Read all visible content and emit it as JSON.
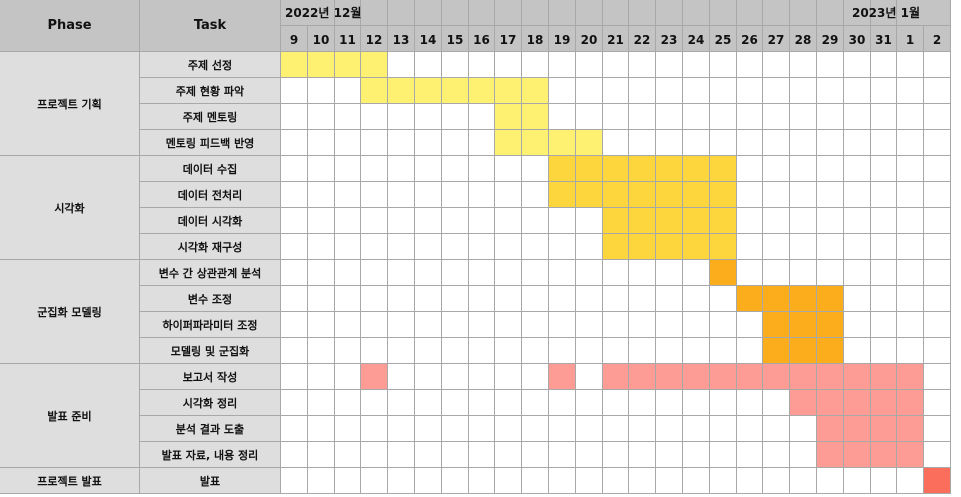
{
  "header": {
    "phase": "Phase",
    "task": "Task"
  },
  "months": [
    {
      "label": "2022년 12월",
      "start_day_index": 0,
      "align": "left"
    },
    {
      "label": "2023년 1월",
      "start_day_index": 23,
      "align": "right"
    }
  ],
  "days": [
    "9",
    "10",
    "11",
    "12",
    "13",
    "14",
    "15",
    "16",
    "17",
    "18",
    "19",
    "20",
    "21",
    "22",
    "23",
    "24",
    "25",
    "26",
    "27",
    "28",
    "29",
    "30",
    "31",
    "1",
    "2"
  ],
  "colors": {
    "yellow": "#fef070",
    "gold": "#fcd63c",
    "orange": "#fbad1c",
    "salmon": "#fc9c94",
    "red": "#fc6e5c"
  },
  "phases": [
    {
      "name": "프로젝트 기획",
      "tasks": [
        {
          "name": "주제 선정",
          "cells": [
            [
              0,
              3,
              "yellow"
            ]
          ]
        },
        {
          "name": "주제 현황 파악",
          "cells": [
            [
              3,
              9,
              "yellow"
            ]
          ]
        },
        {
          "name": "주제 멘토링",
          "cells": [
            [
              8,
              9,
              "yellow"
            ]
          ]
        },
        {
          "name": "멘토링 피드백 반영",
          "cells": [
            [
              8,
              11,
              "yellow"
            ]
          ]
        }
      ]
    },
    {
      "name": "시각화",
      "tasks": [
        {
          "name": "데이터 수집",
          "cells": [
            [
              10,
              16,
              "gold"
            ]
          ]
        },
        {
          "name": "데이터 전처리",
          "cells": [
            [
              10,
              16,
              "gold"
            ]
          ]
        },
        {
          "name": "데이터 시각화",
          "cells": [
            [
              12,
              16,
              "gold"
            ]
          ]
        },
        {
          "name": "시각화 재구성",
          "cells": [
            [
              12,
              16,
              "gold"
            ]
          ]
        }
      ]
    },
    {
      "name": "군집화 모델링",
      "tasks": [
        {
          "name": "변수 간 상관관계 분석",
          "cells": [
            [
              16,
              16,
              "orange"
            ]
          ]
        },
        {
          "name": "변수 조정",
          "cells": [
            [
              17,
              20,
              "orange"
            ]
          ]
        },
        {
          "name": "하이퍼파라미터 조정",
          "cells": [
            [
              18,
              20,
              "orange"
            ]
          ]
        },
        {
          "name": "모델링 및 군집화",
          "cells": [
            [
              18,
              20,
              "orange"
            ]
          ]
        }
      ]
    },
    {
      "name": "발표 준비",
      "tasks": [
        {
          "name": "보고서 작성",
          "cells": [
            [
              3,
              3,
              "salmon"
            ],
            [
              10,
              10,
              "salmon"
            ],
            [
              12,
              23,
              "salmon"
            ]
          ]
        },
        {
          "name": "시각화 정리",
          "cells": [
            [
              19,
              23,
              "salmon"
            ]
          ]
        },
        {
          "name": "분석 결과 도출",
          "cells": [
            [
              20,
              23,
              "salmon"
            ]
          ]
        },
        {
          "name": "발표 자료, 내용 정리",
          "cells": [
            [
              20,
              23,
              "salmon"
            ]
          ]
        }
      ]
    },
    {
      "name": "프로젝트 발표",
      "tasks": [
        {
          "name": "발표",
          "cells": [
            [
              24,
              24,
              "red"
            ]
          ]
        }
      ]
    }
  ]
}
